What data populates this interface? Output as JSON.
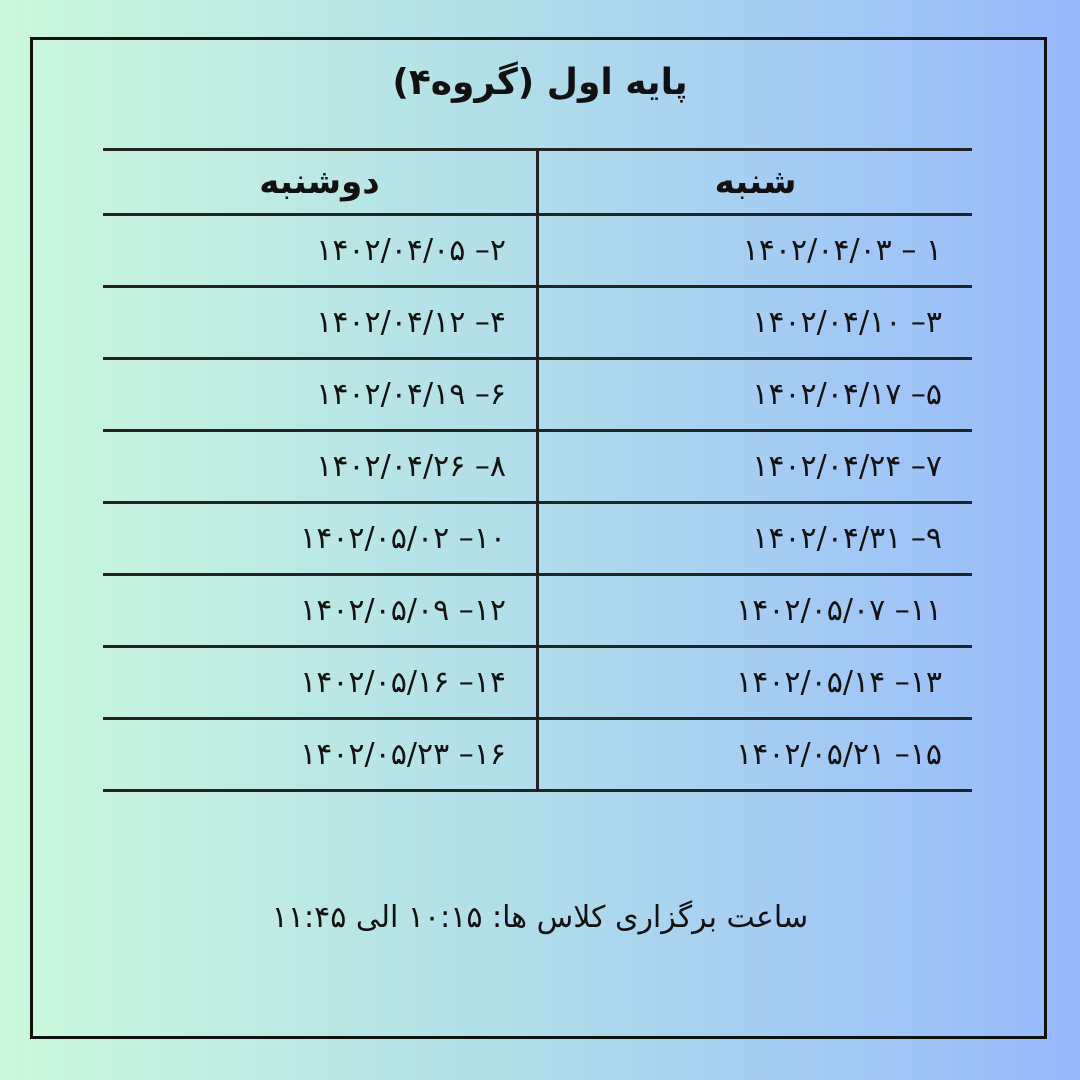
{
  "title": "پایه اول (گروه۴)",
  "headers": {
    "saturday": "شنبه",
    "monday": "دوشنبه"
  },
  "rows": [
    {
      "saturday": "۱ – ۱۴۰۲/۰۴/۰۳",
      "monday": "۲– ۱۴۰۲/۰۴/۰۵"
    },
    {
      "saturday": "۳– ۱۴۰۲/۰۴/۱۰",
      "monday": "۴– ۱۴۰۲/۰۴/۱۲"
    },
    {
      "saturday": "۵– ۱۴۰۲/۰۴/۱۷",
      "monday": "۶– ۱۴۰۲/۰۴/۱۹"
    },
    {
      "saturday": "۷– ۱۴۰۲/۰۴/۲۴",
      "monday": "۸– ۱۴۰۲/۰۴/۲۶"
    },
    {
      "saturday": "۹– ۱۴۰۲/۰۴/۳۱",
      "monday": "۱۰– ۱۴۰۲/۰۵/۰۲"
    },
    {
      "saturday": "۱۱– ۱۴۰۲/۰۵/۰۷",
      "monday": "۱۲– ۱۴۰۲/۰۵/۰۹"
    },
    {
      "saturday": "۱۳– ۱۴۰۲/۰۵/۱۴",
      "monday": "۱۴– ۱۴۰۲/۰۵/۱۶"
    },
    {
      "saturday": "۱۵– ۱۴۰۲/۰۵/۲۱",
      "monday": "۱۶– ۱۴۰۲/۰۵/۲۳"
    }
  ],
  "footer": "ساعت برگزاری کلاس ها: ۱۰:۱۵ الی ۱۱:۴۵"
}
